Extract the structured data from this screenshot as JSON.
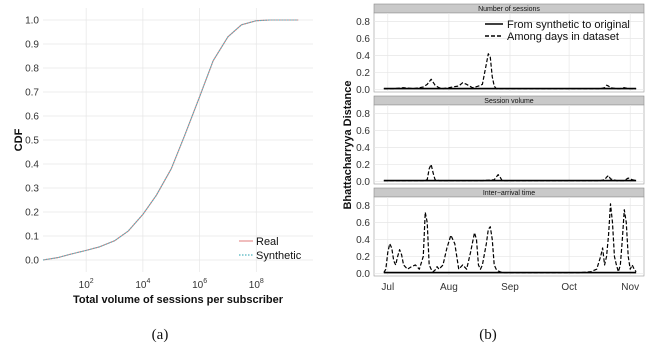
{
  "captions": {
    "a": "(a)",
    "b": "(b)"
  },
  "chart_data": [
    {
      "type": "line",
      "xlabel": "Total volume of sessions per subscriber",
      "ylabel": "CDF",
      "xscale": "log10",
      "xlim": [
        3,
        10000000000
      ],
      "ylim": [
        -0.05,
        1.05
      ],
      "x_ticks": [
        {
          "value": 100,
          "base": "10",
          "exp": "2"
        },
        {
          "value": 10000,
          "base": "10",
          "exp": "4"
        },
        {
          "value": 1000000,
          "base": "10",
          "exp": "6"
        },
        {
          "value": 100000000,
          "base": "10",
          "exp": "8"
        }
      ],
      "y_ticks": [
        "0.0",
        "0.1",
        "0.2",
        "0.3",
        "0.4",
        "0.5",
        "0.6",
        "0.7",
        "0.8",
        "0.9",
        "1.0"
      ],
      "grid": true,
      "legend_position": "bottom-right",
      "series": [
        {
          "name": "Real",
          "color": "#e07b7b",
          "dash": "solid",
          "x": [
            3,
            10,
            30,
            100,
            300,
            1000,
            3000,
            10000,
            30000,
            100000,
            300000,
            1000000,
            3000000,
            10000000,
            30000000,
            100000000,
            300000000,
            1000000000,
            3000000000
          ],
          "y": [
            0.0,
            0.01,
            0.025,
            0.04,
            0.055,
            0.08,
            0.12,
            0.19,
            0.27,
            0.38,
            0.52,
            0.68,
            0.83,
            0.93,
            0.98,
            0.997,
            1.0,
            1.0,
            1.0
          ]
        },
        {
          "name": "Synthetic",
          "color": "#4fb3bf",
          "dash": "dotted",
          "x": [
            3,
            10,
            30,
            100,
            300,
            1000,
            3000,
            10000,
            30000,
            100000,
            300000,
            1000000,
            3000000,
            10000000,
            30000000,
            100000000,
            300000000,
            1000000000,
            3000000000
          ],
          "y": [
            0.0,
            0.01,
            0.025,
            0.04,
            0.055,
            0.08,
            0.12,
            0.19,
            0.27,
            0.38,
            0.52,
            0.68,
            0.83,
            0.93,
            0.98,
            0.997,
            1.0,
            1.0,
            1.0
          ]
        }
      ]
    },
    {
      "type": "line",
      "ylabel": "Bhattacharryya Distance",
      "x_ticks": [
        {
          "label": "Jul",
          "day": 2
        },
        {
          "label": "Aug",
          "day": 33
        },
        {
          "label": "Sep",
          "day": 64
        },
        {
          "label": "Oct",
          "day": 94
        },
        {
          "label": "Nov",
          "day": 125
        }
      ],
      "xlim": [
        -5,
        132
      ],
      "y_ticks": [
        "0.0",
        "0.2",
        "0.4",
        "0.6",
        "0.8"
      ],
      "ylim": [
        -0.03,
        0.9
      ],
      "grid": true,
      "legend_position": "top-right",
      "legend": [
        {
          "name": "From synthetic to original",
          "dash": "solid"
        },
        {
          "name": "Among days in dataset",
          "dash": "dashed"
        }
      ],
      "panels": [
        {
          "title": "Number of sessions",
          "series": [
            {
              "name": "From synthetic to original",
              "dash": "solid",
              "x": [
                0,
                128
              ],
              "y": [
                0.01,
                0.01
              ]
            },
            {
              "name": "Among days in dataset",
              "dash": "dashed",
              "x": [
                0,
                5,
                10,
                15,
                18,
                20,
                22,
                24,
                26,
                28,
                30,
                33,
                35,
                38,
                40,
                42,
                45,
                48,
                50,
                52,
                53,
                54,
                55,
                56,
                57,
                58,
                60,
                62,
                65,
                70,
                75,
                80,
                85,
                90,
                95,
                100,
                105,
                110,
                112,
                113,
                114,
                115,
                118,
                120,
                122,
                124,
                126,
                128
              ],
              "y": [
                0.01,
                0.01,
                0.02,
                0.01,
                0.02,
                0.03,
                0.06,
                0.12,
                0.05,
                0.02,
                0.01,
                0.02,
                0.03,
                0.04,
                0.08,
                0.06,
                0.02,
                0.04,
                0.06,
                0.3,
                0.42,
                0.38,
                0.15,
                0.04,
                0.01,
                0.01,
                0.01,
                0.01,
                0.01,
                0.01,
                0.01,
                0.01,
                0.01,
                0.01,
                0.01,
                0.01,
                0.01,
                0.01,
                0.02,
                0.05,
                0.04,
                0.02,
                0.01,
                0.01,
                0.02,
                0.01,
                0.01,
                0.01
              ]
            }
          ]
        },
        {
          "title": "Session volume",
          "series": [
            {
              "name": "From synthetic to original",
              "dash": "solid",
              "x": [
                0,
                128
              ],
              "y": [
                0.01,
                0.01
              ]
            },
            {
              "name": "Among days in dataset",
              "dash": "dashed",
              "x": [
                0,
                10,
                20,
                22,
                23,
                24,
                25,
                26,
                28,
                30,
                40,
                50,
                56,
                57,
                58,
                59,
                60,
                70,
                80,
                90,
                100,
                110,
                112,
                113,
                114,
                115,
                118,
                120,
                122,
                124,
                126,
                128
              ],
              "y": [
                0.01,
                0.01,
                0.01,
                0.02,
                0.15,
                0.2,
                0.1,
                0.02,
                0.01,
                0.01,
                0.01,
                0.01,
                0.02,
                0.05,
                0.08,
                0.05,
                0.01,
                0.01,
                0.01,
                0.01,
                0.01,
                0.01,
                0.02,
                0.05,
                0.07,
                0.03,
                0.01,
                0.01,
                0.01,
                0.04,
                0.02,
                0.01
              ]
            }
          ]
        },
        {
          "title": "Inter−arrival time",
          "series": [
            {
              "name": "From synthetic to original",
              "dash": "solid",
              "x": [
                0,
                128
              ],
              "y": [
                0.01,
                0.01
              ]
            },
            {
              "name": "Among days in dataset",
              "dash": "dashed",
              "x": [
                0,
                1,
                2,
                3,
                4,
                5,
                6,
                7,
                8,
                9,
                10,
                12,
                14,
                16,
                18,
                20,
                21,
                22,
                23,
                24,
                25,
                26,
                27,
                28,
                30,
                32,
                34,
                36,
                38,
                40,
                42,
                44,
                46,
                47,
                48,
                49,
                50,
                52,
                53,
                54,
                55,
                56,
                57,
                58,
                59,
                60,
                62,
                70,
                80,
                90,
                100,
                105,
                108,
                110,
                111,
                112,
                113,
                114,
                115,
                116,
                117,
                118,
                119,
                120,
                121,
                122,
                123,
                124,
                125,
                126,
                127,
                128
              ],
              "y": [
                0.01,
                0.05,
                0.25,
                0.35,
                0.3,
                0.15,
                0.1,
                0.2,
                0.28,
                0.22,
                0.1,
                0.05,
                0.08,
                0.1,
                0.05,
                0.2,
                0.72,
                0.6,
                0.1,
                0.05,
                0.02,
                0.04,
                0.08,
                0.05,
                0.1,
                0.3,
                0.45,
                0.35,
                0.05,
                0.1,
                0.05,
                0.25,
                0.48,
                0.4,
                0.1,
                0.05,
                0.1,
                0.35,
                0.52,
                0.55,
                0.4,
                0.1,
                0.05,
                0.03,
                0.02,
                0.01,
                0.01,
                0.01,
                0.01,
                0.01,
                0.01,
                0.02,
                0.05,
                0.2,
                0.3,
                0.1,
                0.2,
                0.45,
                0.82,
                0.6,
                0.2,
                0.1,
                0.02,
                0.1,
                0.4,
                0.75,
                0.6,
                0.2,
                0.05,
                0.1,
                0.05,
                0.02
              ]
            }
          ]
        }
      ]
    }
  ]
}
